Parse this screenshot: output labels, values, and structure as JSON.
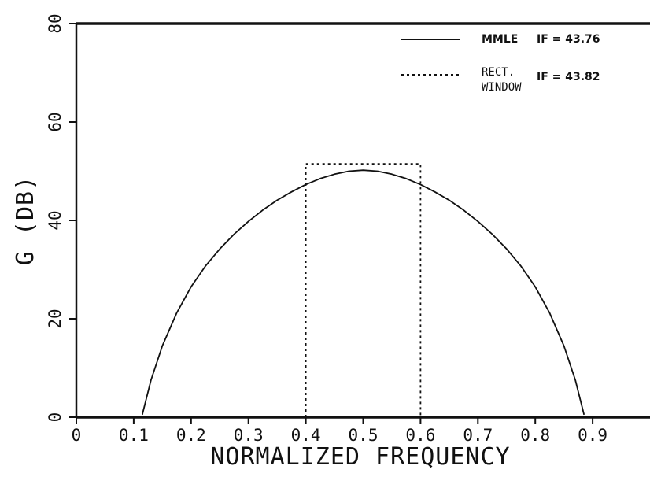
{
  "chart_data": {
    "type": "line",
    "title": "",
    "xlabel": "NORMALIZED FREQUENCY",
    "ylabel": "G (DB)",
    "xlim": [
      0,
      1.0
    ],
    "ylim": [
      0,
      80
    ],
    "x_ticks": [
      "0",
      "0.1",
      "0.2",
      "0.3",
      "0.4",
      "0.5",
      "0.6",
      "0.7",
      "0.8",
      "0.9"
    ],
    "y_ticks": [
      "0",
      "20",
      "40",
      "60",
      "80"
    ],
    "grid": false,
    "legend_position": "top-right",
    "series": [
      {
        "name": "MMLE",
        "if_label": "IF = 43.76",
        "style": "solid",
        "x": [
          0.115,
          0.13,
          0.15,
          0.175,
          0.2,
          0.225,
          0.25,
          0.275,
          0.3,
          0.325,
          0.35,
          0.375,
          0.4,
          0.425,
          0.45,
          0.475,
          0.5,
          0.525,
          0.55,
          0.575,
          0.6,
          0.625,
          0.65,
          0.675,
          0.7,
          0.725,
          0.75,
          0.775,
          0.8,
          0.825,
          0.85,
          0.87,
          0.885
        ],
        "y": [
          0.5,
          7.5,
          14.5,
          21.2,
          26.5,
          30.7,
          34.2,
          37.2,
          39.8,
          42.1,
          44.1,
          45.8,
          47.3,
          48.5,
          49.4,
          50.0,
          50.2,
          50.0,
          49.4,
          48.5,
          47.3,
          45.8,
          44.1,
          42.1,
          39.8,
          37.2,
          34.2,
          30.7,
          26.5,
          21.2,
          14.5,
          7.5,
          0.5
        ]
      },
      {
        "name": "RECT.\nWINDOW",
        "if_label": "IF = 43.82",
        "style": "dotted",
        "x": [
          0.4,
          0.4,
          0.6,
          0.6
        ],
        "y": [
          0,
          51.5,
          51.5,
          0
        ]
      }
    ]
  }
}
